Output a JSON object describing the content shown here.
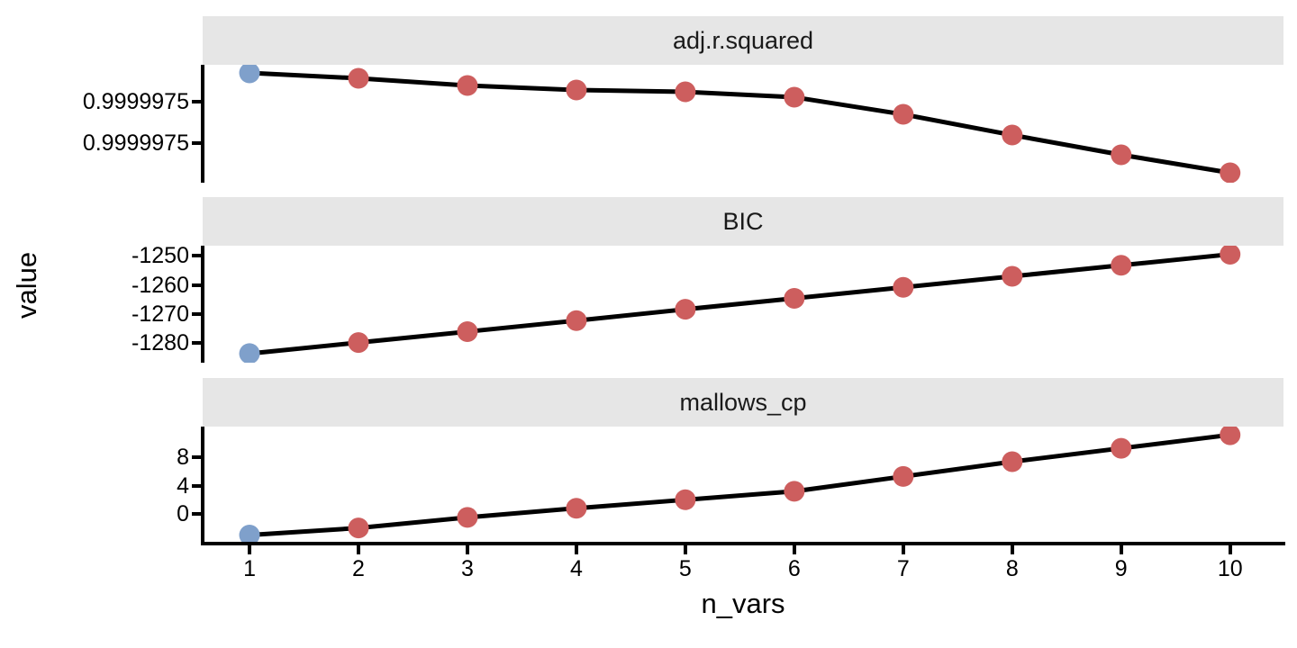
{
  "figure": {
    "x_axis_title": "n_vars",
    "y_axis_title": "value"
  },
  "colors": {
    "strip_background": "#E6E6E6",
    "panel_background": "#FFFFFF",
    "line": "#000000",
    "first_point": "#7FA0CB",
    "other_points": "#CD5E5E",
    "axis": "#000000",
    "text": "#000000"
  },
  "chart_data": {
    "type": "line",
    "title": "",
    "xlabel": "n_vars",
    "ylabel": "value",
    "facet_layout": "3 stacked panels, shared x axis, free y scales",
    "legend": "none",
    "grid": "off",
    "x": [
      1,
      2,
      3,
      4,
      5,
      6,
      7,
      8,
      9,
      10
    ],
    "x_tick_labels": [
      "1",
      "2",
      "3",
      "4",
      "5",
      "6",
      "7",
      "8",
      "9",
      "10"
    ],
    "xlim": [
      0.57,
      10.49
    ],
    "point_note": "point at n_vars=1 is blue, all others red, connected by a black line",
    "facets": [
      {
        "title": "adj.r.squared",
        "ylim": [
          0.9999974311,
          0.9999975751
        ],
        "y_ticks": [
          {
            "label": "0.9999975",
            "value": 0.99999753
          },
          {
            "label": "0.9999975",
            "value": 0.99999748
          }
        ],
        "values": [
          0.9999975652,
          0.9999975586,
          0.9999975498,
          0.9999975443,
          0.9999975421,
          0.9999975355,
          0.9999975146,
          0.9999974893,
          0.9999974652,
          0.9999974432
        ]
      },
      {
        "title": "BIC",
        "ylim": [
          -1286.84,
          -1246.43
        ],
        "y_ticks": [
          {
            "label": "-1250",
            "value": -1250
          },
          {
            "label": "-1260",
            "value": -1260
          },
          {
            "label": "-1270",
            "value": -1270
          },
          {
            "label": "-1280",
            "value": -1280
          }
        ],
        "values": [
          -1283.7,
          -1279.9,
          -1276.1,
          -1272.3,
          -1268.4,
          -1264.6,
          -1260.8,
          -1257.0,
          -1253.2,
          -1249.4
        ]
      },
      {
        "title": "mallows_cp",
        "ylim": [
          -4.21,
          12.37
        ],
        "y_ticks": [
          {
            "label": "8",
            "value": 8
          },
          {
            "label": "4",
            "value": 4
          },
          {
            "label": "0",
            "value": 0
          }
        ],
        "values": [
          -3.0,
          -2.0,
          -0.5,
          0.8,
          2.0,
          3.2,
          5.3,
          7.4,
          9.3,
          11.2
        ]
      }
    ]
  }
}
